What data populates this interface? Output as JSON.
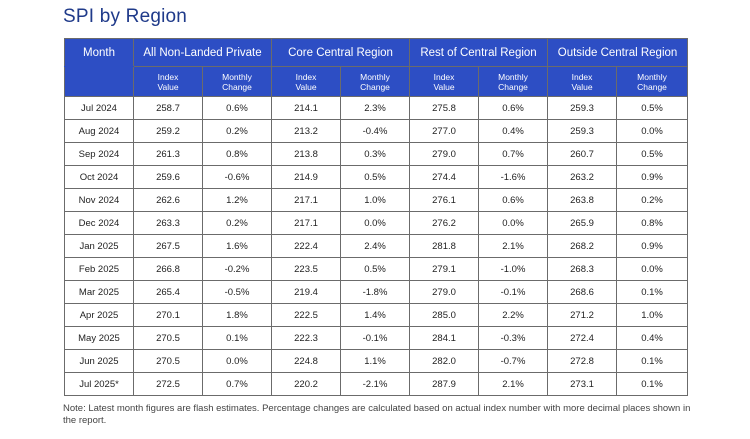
{
  "title": "SPI by Region",
  "headers": {
    "month": "Month",
    "regions": [
      "All Non-Landed Private",
      "Core Central Region",
      "Rest of Central Region",
      "Outside Central Region"
    ],
    "index_value_line1": "Index",
    "index_value_line2": "Value",
    "monthly_change_line1": "Monthly",
    "monthly_change_line2": "Change"
  },
  "rows": [
    [
      "Jul 2024",
      "258.7",
      "0.6%",
      "214.1",
      "2.3%",
      "275.8",
      "0.6%",
      "259.3",
      "0.5%"
    ],
    [
      "Aug 2024",
      "259.2",
      "0.2%",
      "213.2",
      "-0.4%",
      "277.0",
      "0.4%",
      "259.3",
      "0.0%"
    ],
    [
      "Sep 2024",
      "261.3",
      "0.8%",
      "213.8",
      "0.3%",
      "279.0",
      "0.7%",
      "260.7",
      "0.5%"
    ],
    [
      "Oct 2024",
      "259.6",
      "-0.6%",
      "214.9",
      "0.5%",
      "274.4",
      "-1.6%",
      "263.2",
      "0.9%"
    ],
    [
      "Nov 2024",
      "262.6",
      "1.2%",
      "217.1",
      "1.0%",
      "276.1",
      "0.6%",
      "263.8",
      "0.2%"
    ],
    [
      "Dec 2024",
      "263.3",
      "0.2%",
      "217.1",
      "0.0%",
      "276.2",
      "0.0%",
      "265.9",
      "0.8%"
    ],
    [
      "Jan 2025",
      "267.5",
      "1.6%",
      "222.4",
      "2.4%",
      "281.8",
      "2.1%",
      "268.2",
      "0.9%"
    ],
    [
      "Feb 2025",
      "266.8",
      "-0.2%",
      "223.5",
      "0.5%",
      "279.1",
      "-1.0%",
      "268.3",
      "0.0%"
    ],
    [
      "Mar 2025",
      "265.4",
      "-0.5%",
      "219.4",
      "-1.8%",
      "279.0",
      "-0.1%",
      "268.6",
      "0.1%"
    ],
    [
      "Apr 2025",
      "270.1",
      "1.8%",
      "222.5",
      "1.4%",
      "285.0",
      "2.2%",
      "271.2",
      "1.0%"
    ],
    [
      "May 2025",
      "270.5",
      "0.1%",
      "222.3",
      "-0.1%",
      "284.1",
      "-0.3%",
      "272.4",
      "0.4%"
    ],
    [
      "Jun 2025",
      "270.5",
      "0.0%",
      "224.8",
      "1.1%",
      "282.0",
      "-0.7%",
      "272.8",
      "0.1%"
    ],
    [
      "Jul 2025*",
      "272.5",
      "0.7%",
      "220.2",
      "-2.1%",
      "287.9",
      "2.1%",
      "273.1",
      "0.1%"
    ]
  ],
  "note": "Note: Latest month figures are flash estimates. Percentage changes are calculated based on actual index number with more decimal places shown in the report."
}
